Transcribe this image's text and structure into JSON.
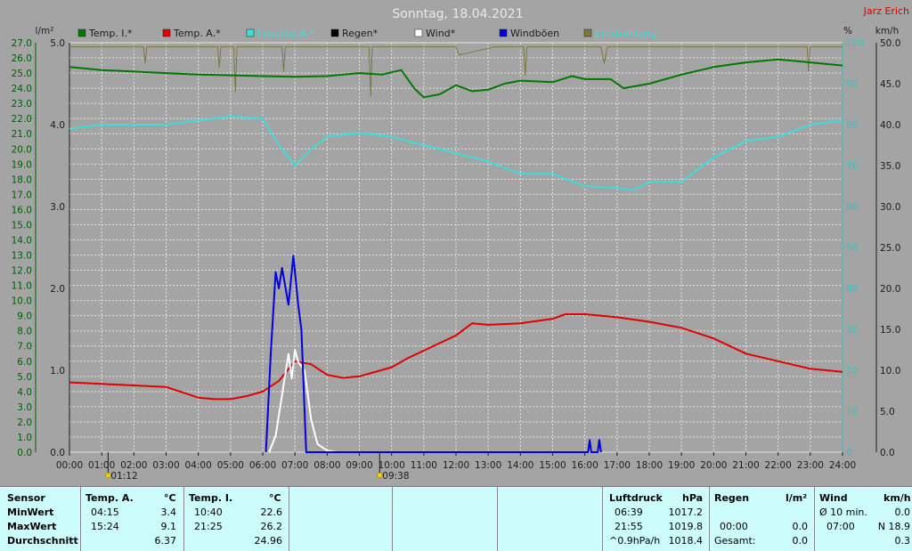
{
  "title": "Sonntag, 18.04.2021",
  "author": "Jarz Erich",
  "axes": {
    "left_unit": "l/m²",
    "right_pct_unit": "%",
    "right_kmh_unit": "km/h",
    "temp_ticks": [
      "27.0",
      "26.0",
      "25.0",
      "24.0",
      "23.0",
      "22.0",
      "21.0",
      "20.0",
      "19.0",
      "18.0",
      "17.0",
      "16.0",
      "15.0",
      "14.0",
      "13.0",
      "12.0",
      "11.0",
      "10.0",
      "9.0",
      "8.0",
      "7.0",
      "6.0",
      "5.0",
      "4.0",
      "3.0",
      "2.0",
      "1.0",
      "0.0"
    ],
    "rain_ticks": [
      "5.0",
      "4.0",
      "3.0",
      "2.0",
      "1.0",
      "0.0"
    ],
    "pct_ticks": [
      "100",
      "90",
      "80",
      "70",
      "60",
      "50",
      "40",
      "30",
      "20",
      "10",
      "0"
    ],
    "kmh_ticks": [
      "50.0",
      "45.0",
      "40.0",
      "35.0",
      "30.0",
      "25.0",
      "20.0",
      "15.0",
      "10.0",
      "5.0",
      "0.0"
    ],
    "time_ticks": [
      "00:00",
      "01:00",
      "02:00",
      "03:00",
      "04:00",
      "05:00",
      "06:00",
      "07:00",
      "08:00",
      "09:00",
      "10:00",
      "11:00",
      "12:00",
      "13:00",
      "14:00",
      "15:00",
      "16:00",
      "17:00",
      "18:00",
      "19:00",
      "20:00",
      "21:00",
      "22:00",
      "23:00",
      "24:00"
    ]
  },
  "markers": [
    {
      "hour": 1.2,
      "label": "01:12"
    },
    {
      "hour": 9.63,
      "label": "09:38"
    }
  ],
  "legend": [
    {
      "label": "Temp. I.*",
      "color": "#007800"
    },
    {
      "label": "Temp. A.*",
      "color": "#e00000"
    },
    {
      "label": "Feuchte A.*",
      "color": "#40dcdc"
    },
    {
      "label": "Regen*",
      "color": "#000000"
    },
    {
      "label": "Wind*",
      "color": "#ffffff"
    },
    {
      "label": "Windböen",
      "color": "#0000e0"
    },
    {
      "label": "Einstrahlung",
      "color": "#7c7840"
    }
  ],
  "colors": {
    "background": "#a4a4a4",
    "grid": "#e4e4e4",
    "temp_axis": "#005f00",
    "pct_axis": "#30c4c4",
    "kmh_axis": "#1c1c1c"
  },
  "chart_data": {
    "type": "line",
    "x_unit": "hours",
    "xlim": [
      0,
      24
    ],
    "temp_ylim": [
      0,
      27
    ],
    "rain_ylim": [
      0,
      5
    ],
    "pct_ylim": [
      0,
      100
    ],
    "kmh_ylim": [
      0,
      50
    ],
    "series": [
      {
        "name": "Temp. I.*",
        "axis": "temp",
        "color": "#007800",
        "points": [
          [
            0,
            25.4
          ],
          [
            1,
            25.2
          ],
          [
            2,
            25.1
          ],
          [
            3,
            25.0
          ],
          [
            4,
            24.9
          ],
          [
            5,
            24.85
          ],
          [
            6,
            24.8
          ],
          [
            7,
            24.75
          ],
          [
            8,
            24.8
          ],
          [
            9,
            25.0
          ],
          [
            9.7,
            24.9
          ],
          [
            10.3,
            25.2
          ],
          [
            10.7,
            24.0
          ],
          [
            11,
            23.4
          ],
          [
            11.5,
            23.6
          ],
          [
            12,
            24.2
          ],
          [
            12.5,
            23.8
          ],
          [
            13,
            23.9
          ],
          [
            13.5,
            24.3
          ],
          [
            14,
            24.5
          ],
          [
            15,
            24.4
          ],
          [
            15.6,
            24.8
          ],
          [
            16,
            24.6
          ],
          [
            16.8,
            24.6
          ],
          [
            17.2,
            24.0
          ],
          [
            18,
            24.3
          ],
          [
            19,
            24.9
          ],
          [
            20,
            25.4
          ],
          [
            21,
            25.7
          ],
          [
            22,
            25.9
          ],
          [
            23,
            25.7
          ],
          [
            24,
            25.5
          ]
        ]
      },
      {
        "name": "Feuchte A.*",
        "axis": "pct",
        "color": "#40dcdc",
        "points": [
          [
            0,
            79
          ],
          [
            1,
            80
          ],
          [
            2,
            80
          ],
          [
            3,
            80
          ],
          [
            4,
            81
          ],
          [
            5,
            82
          ],
          [
            6,
            81.5
          ],
          [
            6.5,
            75
          ],
          [
            7,
            70
          ],
          [
            7.5,
            74
          ],
          [
            8,
            77
          ],
          [
            9,
            78
          ],
          [
            10,
            77
          ],
          [
            11,
            75
          ],
          [
            12,
            73
          ],
          [
            13,
            71
          ],
          [
            14,
            68
          ],
          [
            15,
            68
          ],
          [
            16,
            65
          ],
          [
            17,
            64.5
          ],
          [
            17.5,
            64
          ],
          [
            18,
            66
          ],
          [
            19,
            66
          ],
          [
            19.5,
            69
          ],
          [
            20,
            72
          ],
          [
            21,
            76
          ],
          [
            22,
            77
          ],
          [
            23,
            80
          ],
          [
            24,
            81
          ]
        ]
      },
      {
        "name": "Temp. A.*",
        "axis": "temp",
        "color": "#e00000",
        "points": [
          [
            0,
            4.6
          ],
          [
            1,
            4.5
          ],
          [
            2,
            4.4
          ],
          [
            3,
            4.3
          ],
          [
            4,
            3.6
          ],
          [
            4.5,
            3.5
          ],
          [
            5,
            3.5
          ],
          [
            5.5,
            3.7
          ],
          [
            6,
            4.0
          ],
          [
            6.5,
            4.7
          ],
          [
            7,
            6.0
          ],
          [
            7.5,
            5.8
          ],
          [
            8,
            5.1
          ],
          [
            8.5,
            4.9
          ],
          [
            9,
            5.0
          ],
          [
            10,
            5.6
          ],
          [
            10.5,
            6.2
          ],
          [
            11,
            6.7
          ],
          [
            12,
            7.7
          ],
          [
            12.5,
            8.5
          ],
          [
            13,
            8.4
          ],
          [
            14,
            8.5
          ],
          [
            15,
            8.8
          ],
          [
            15.4,
            9.1
          ],
          [
            16,
            9.1
          ],
          [
            17,
            8.9
          ],
          [
            18,
            8.6
          ],
          [
            19,
            8.2
          ],
          [
            20,
            7.5
          ],
          [
            21,
            6.5
          ],
          [
            22,
            6.0
          ],
          [
            23,
            5.5
          ],
          [
            24,
            5.3
          ]
        ]
      },
      {
        "name": "Wind*",
        "axis": "kmh",
        "color": "#ffffff",
        "points": [
          [
            6.2,
            0
          ],
          [
            6.4,
            2
          ],
          [
            6.6,
            7
          ],
          [
            6.8,
            12
          ],
          [
            6.9,
            9
          ],
          [
            7.0,
            12.5
          ],
          [
            7.1,
            11
          ],
          [
            7.3,
            10
          ],
          [
            7.5,
            4
          ],
          [
            7.7,
            1
          ],
          [
            8,
            0.2
          ],
          [
            8.3,
            0
          ]
        ]
      },
      {
        "name": "Windböen",
        "axis": "kmh",
        "color": "#0000e0",
        "points": [
          [
            6.1,
            0
          ],
          [
            6.25,
            12
          ],
          [
            6.4,
            22
          ],
          [
            6.5,
            20
          ],
          [
            6.6,
            22.5
          ],
          [
            6.8,
            18
          ],
          [
            6.95,
            24
          ],
          [
            7.1,
            18
          ],
          [
            7.2,
            15
          ],
          [
            7.35,
            0
          ],
          [
            16.1,
            0
          ],
          [
            16.15,
            1.5
          ],
          [
            16.2,
            0
          ],
          [
            16.4,
            0
          ],
          [
            16.45,
            1.5
          ],
          [
            16.5,
            0
          ]
        ]
      }
    ],
    "irradiance_curve": {
      "name": "Einstrahlung",
      "axis": "pct",
      "color": "#7c7840",
      "points": [
        [
          0,
          99
        ],
        [
          2.3,
          99
        ],
        [
          2.35,
          95
        ],
        [
          2.4,
          99
        ],
        [
          4.6,
          99
        ],
        [
          4.65,
          94
        ],
        [
          4.7,
          99
        ],
        [
          5.1,
          99
        ],
        [
          5.15,
          88
        ],
        [
          5.2,
          99
        ],
        [
          6.6,
          99
        ],
        [
          6.65,
          93
        ],
        [
          6.7,
          99
        ],
        [
          9.3,
          99
        ],
        [
          9.35,
          87
        ],
        [
          9.4,
          99
        ],
        [
          12,
          99
        ],
        [
          12.1,
          97
        ],
        [
          13.2,
          99
        ],
        [
          14.1,
          99
        ],
        [
          14.15,
          92
        ],
        [
          14.2,
          99
        ],
        [
          16.5,
          99
        ],
        [
          16.6,
          95
        ],
        [
          16.7,
          99
        ],
        [
          21,
          99
        ],
        [
          22.9,
          99
        ],
        [
          22.95,
          93
        ],
        [
          23,
          99
        ],
        [
          24,
          99
        ]
      ]
    }
  },
  "panel": {
    "sensor_header": "Sensor",
    "row_labels": [
      "MinWert",
      "MaxWert",
      "Durchschnitt"
    ],
    "temp_a": {
      "header": "Temp. A.",
      "unit": "°C",
      "min_time": "04:15",
      "min": "3.4",
      "max_time": "15:24",
      "max": "9.1",
      "avg": "6.37"
    },
    "temp_i": {
      "header": "Temp. I.",
      "unit": "°C",
      "min_time": "10:40",
      "min": "22.6",
      "max_time": "21:25",
      "max": "26.2",
      "avg": "24.96"
    },
    "pressure": {
      "header": "Luftdruck",
      "unit": "hPa",
      "min_time": "06:39",
      "min": "1017.2",
      "max_time": "21:55",
      "max": "1019.8",
      "trend_label": "^0.9hPa/h",
      "trend": "1018.4"
    },
    "rain": {
      "header": "Regen",
      "unit": "l/m²",
      "r1_time": "00:00",
      "r1": "0.0",
      "total_label": "Gesamt:",
      "total": "0.0"
    },
    "wind": {
      "header": "Wind",
      "unit": "km/h",
      "avg_label": "Ø 10 min.",
      "avg": "0.0",
      "max_time": "07:00",
      "max": "N 18.9",
      "mean": "0.3"
    }
  }
}
